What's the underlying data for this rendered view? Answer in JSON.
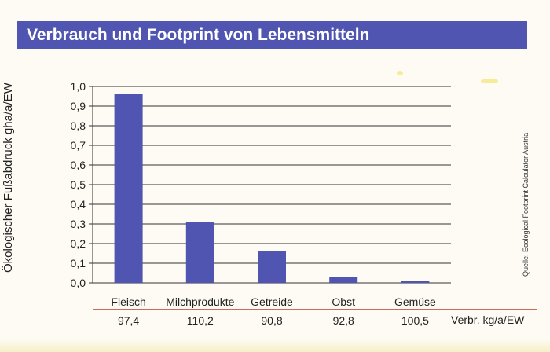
{
  "title": "Verbrauch und Footprint von Lebensmitteln",
  "ylabel": "Ökologischer Fußabdruck gha/a/EW",
  "source": "Quelle: Ecological Footprint Calculator Austria",
  "consumption_label": "Verbr. kg/a/EW",
  "colors": {
    "bar": "#4f55b0",
    "title_bg": "#4f55b0",
    "divider": "#c0392b",
    "grid": "#333333"
  },
  "chart_data": {
    "type": "bar",
    "title": "Verbrauch und Footprint von Lebensmitteln",
    "ylabel": "Ökologischer Fußabdruck gha/a/EW",
    "categories": [
      "Fleisch",
      "Milchprodukte",
      "Getreide",
      "Obst",
      "Gemüse"
    ],
    "values": [
      0.96,
      0.31,
      0.16,
      0.03,
      0.01
    ],
    "consumption": [
      "97,4",
      "110,2",
      "90,8",
      "92,8",
      "100,5"
    ],
    "ylim": [
      0,
      1.0
    ],
    "yticks": [
      "0,0",
      "0,1",
      "0,2",
      "0,3",
      "0,4",
      "0,5",
      "0,6",
      "0,7",
      "0,8",
      "0,9",
      "1,0"
    ],
    "grid": true
  }
}
